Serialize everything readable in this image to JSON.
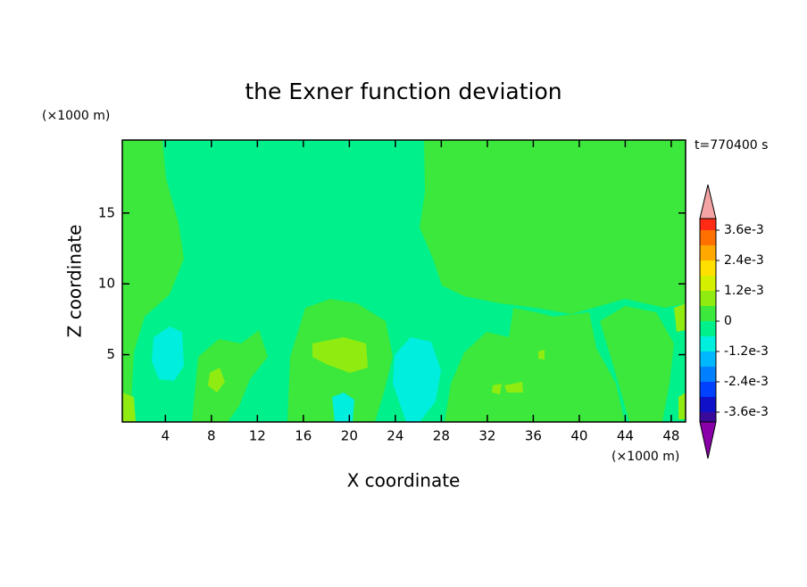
{
  "chart_data": {
    "type": "contour",
    "title": "the Exner function deviation",
    "x_label": "X coordinate",
    "y_label": "Z coordinate",
    "x_unit": "(×1000 m)",
    "y_unit": "(×1000 m)",
    "annotation": "t=770400 s",
    "xlim": [
      0.25,
      49.25
    ],
    "ylim": [
      0.25,
      20.15
    ],
    "xticks": [
      4,
      8,
      12,
      16,
      20,
      24,
      28,
      32,
      36,
      40,
      44,
      48
    ],
    "yticks": [
      5,
      10,
      15
    ],
    "levels": [
      {
        "value": -0.0036,
        "label": "-3.6e-3"
      },
      -0.003,
      {
        "value": -0.0024,
        "label": "-2.4e-3"
      },
      -0.0018,
      {
        "value": -0.0012,
        "label": "-1.2e-3"
      },
      -0.0006,
      0,
      0.0006,
      {
        "value": 0.0012,
        "label": "1.2e-3"
      },
      0.0018,
      {
        "value": 0.0024,
        "label": "2.4e-3"
      },
      0.003,
      {
        "value": 0.0036,
        "label": "3.6e-3"
      }
    ],
    "colors": [
      "#3a0a9a",
      "#1010c8",
      "#0040ff",
      "#0080ff",
      "#00b8ff",
      "#00eedd",
      "#00f08c",
      "#3ce83c",
      "#90ec10",
      "#d4f000",
      "#ffe000",
      "#ffa800",
      "#ff7000",
      "#ff2a14"
    ],
    "under_color": "#8a00a8",
    "over_color": "#f4a4a4"
  }
}
